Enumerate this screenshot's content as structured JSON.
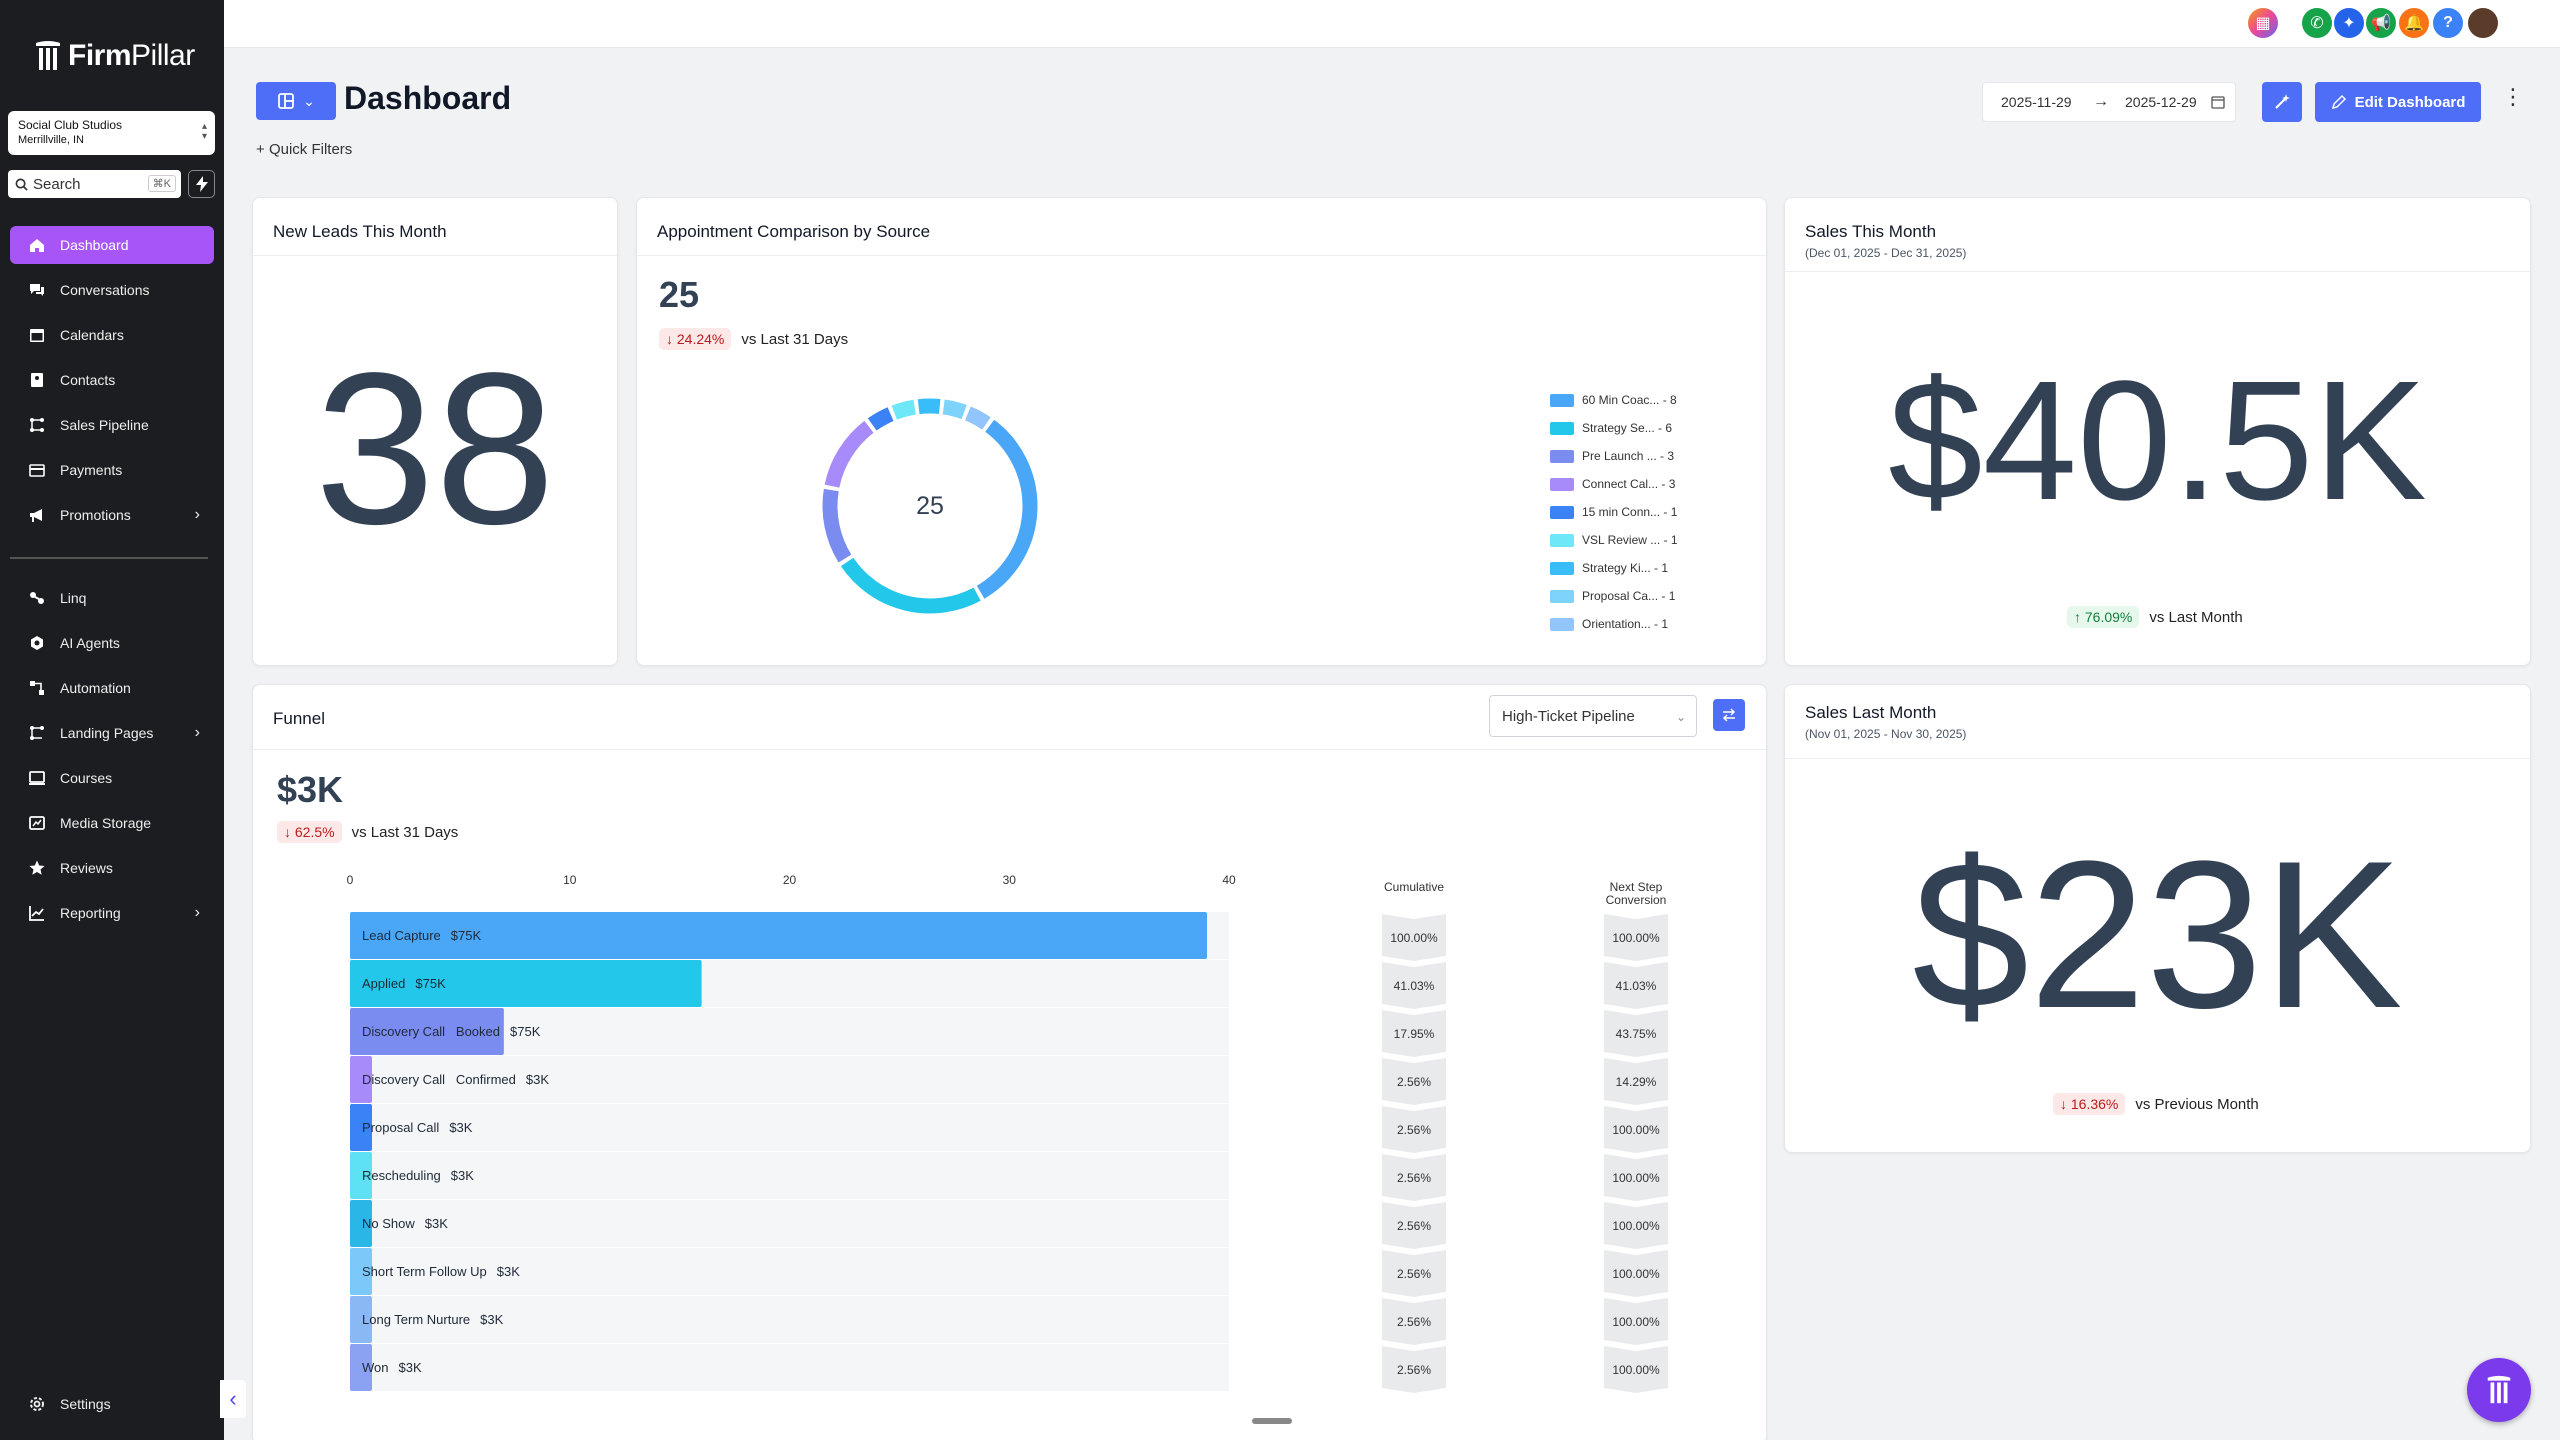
{
  "app": {
    "brand_bold": "Firm",
    "brand_light": "Pillar"
  },
  "location": {
    "name": "Social Club Studios",
    "city": "Merrillville, IN"
  },
  "search": {
    "placeholder": "Search",
    "shortcut": "⌘K"
  },
  "sidebar": {
    "items": [
      {
        "label": "Dashboard",
        "icon": "home-icon"
      },
      {
        "label": "Conversations",
        "icon": "chat-icon"
      },
      {
        "label": "Calendars",
        "icon": "calendar-icon"
      },
      {
        "label": "Contacts",
        "icon": "contact-icon"
      },
      {
        "label": "Sales Pipeline",
        "icon": "pipeline-icon"
      },
      {
        "label": "Payments",
        "icon": "card-icon"
      },
      {
        "label": "Promotions",
        "icon": "megaphone-icon"
      },
      {
        "label": "Linq",
        "icon": "link-icon"
      },
      {
        "label": "AI Agents",
        "icon": "robot-icon"
      },
      {
        "label": "Automation",
        "icon": "flow-icon"
      },
      {
        "label": "Landing Pages",
        "icon": "pages-icon"
      },
      {
        "label": "Courses",
        "icon": "monitor-icon"
      },
      {
        "label": "Media Storage",
        "icon": "folder-icon"
      },
      {
        "label": "Reviews",
        "icon": "star-icon"
      },
      {
        "label": "Reporting",
        "icon": "chart-icon"
      }
    ],
    "settings": "Settings"
  },
  "header": {
    "title": "Dashboard",
    "quick_filters": "Quick Filters",
    "date_from": "2025-11-29",
    "date_to": "2025-12-29",
    "edit_button": "Edit Dashboard"
  },
  "colors": {
    "accent": "#4f6ef7",
    "active_nav": "#a855f7",
    "fab": "#7c3aed"
  },
  "cards": {
    "new_leads": {
      "title": "New Leads This Month",
      "value": "38"
    },
    "appointments": {
      "title": "Appointment Comparison by Source",
      "total": "25",
      "change": "24.24%",
      "compare": "vs Last 31 Days",
      "center": "25"
    },
    "sales_this_month": {
      "title": "Sales This Month",
      "subtitle": "(Dec 01, 2025 - Dec 31, 2025)",
      "value": "$40.5K",
      "change": "76.09%",
      "compare": "vs Last Month"
    },
    "sales_last_month": {
      "title": "Sales Last Month",
      "subtitle": "(Nov 01, 2025 - Nov 30, 2025)",
      "value": "$23K",
      "change": "16.36%",
      "compare": "vs Previous Month"
    },
    "funnel": {
      "title": "Funnel",
      "pipeline": "High-Ticket Pipeline",
      "total": "$3K",
      "change": "62.5%",
      "compare": "vs Last 31 Days",
      "col_cumulative": "Cumulative",
      "col_next_1": "Next Step",
      "col_next_2": "Conversion"
    }
  },
  "chart_data": [
    {
      "type": "pie",
      "title": "Appointment Comparison by Source",
      "labels": [
        "60 Min Coac... - 8",
        "Strategy Se... - 6",
        "Pre Launch ... - 3",
        "Connect Cal... - 3",
        "15 min Conn... - 1",
        "VSL Review ... - 1",
        "Strategy Ki... - 1",
        "Proposal Ca... - 1",
        "Orientation... - 1"
      ],
      "values": [
        8,
        6,
        3,
        3,
        1,
        1,
        1,
        1,
        1
      ],
      "colors": [
        "#4aa7f7",
        "#22c7ea",
        "#7b8cf0",
        "#a78bfa",
        "#3b82f6",
        "#6ee7f9",
        "#38bdf8",
        "#7dd3fc",
        "#93c5fd"
      ]
    },
    {
      "type": "bar",
      "title": "Funnel",
      "xticks": [
        "0",
        "10",
        "20",
        "30",
        "40"
      ],
      "xlim": [
        0,
        40
      ],
      "categories": [
        "Lead Capture",
        "Applied",
        "Discovery Call   Booked",
        "Discovery Call   Confirmed",
        "Proposal Call",
        "Rescheduling",
        "No Show",
        "Short Term Follow Up",
        "Long Term Nurture",
        "Won"
      ],
      "amounts": [
        "$75K",
        "$75K",
        "$75K",
        "$3K",
        "$3K",
        "$3K",
        "$3K",
        "$3K",
        "$3K",
        "$3K"
      ],
      "values": [
        39,
        16,
        7,
        1,
        1,
        1,
        1,
        1,
        1,
        1
      ],
      "cumulative": [
        "100.00%",
        "41.03%",
        "17.95%",
        "2.56%",
        "2.56%",
        "2.56%",
        "2.56%",
        "2.56%",
        "2.56%",
        "2.56%"
      ],
      "next_step": [
        "100.00%",
        "41.03%",
        "43.75%",
        "14.29%",
        "100.00%",
        "100.00%",
        "100.00%",
        "100.00%",
        "100.00%",
        "100.00%"
      ],
      "colors": [
        "#4aa7f7",
        "#22c7ea",
        "#7b8cf0",
        "#a78bfa",
        "#3b82f6",
        "#5ee0f5",
        "#2bb6e8",
        "#7cc8f8",
        "#8ab8f5",
        "#8ba2f3"
      ]
    }
  ]
}
